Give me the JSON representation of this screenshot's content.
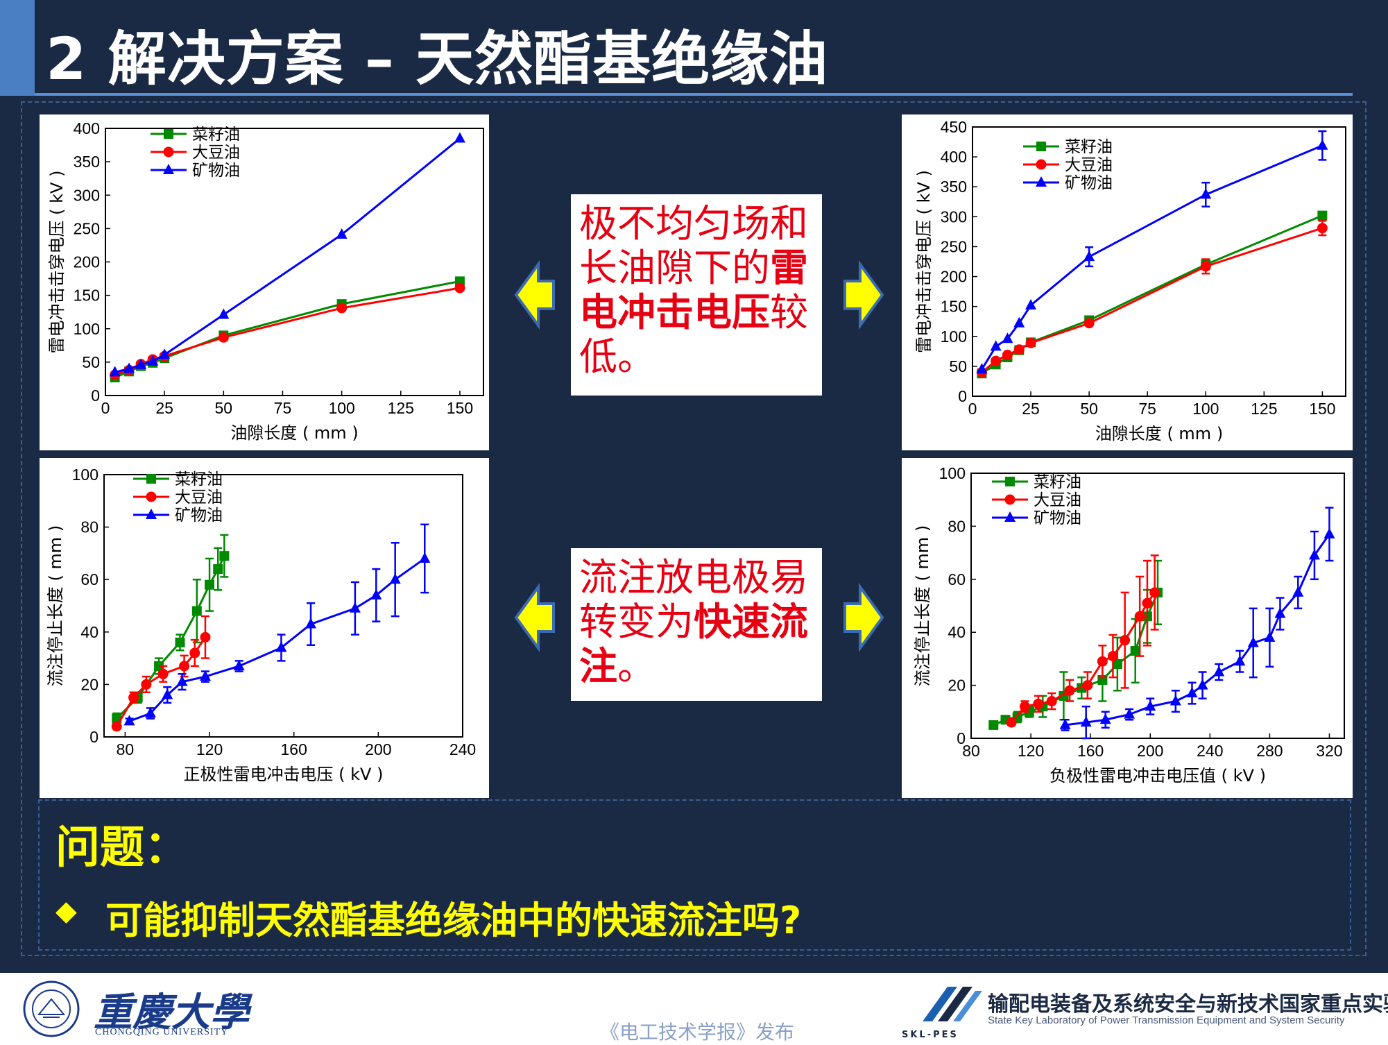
{
  "header": {
    "title": "2 解决方案 – 天然酯基绝缘油"
  },
  "callouts": {
    "top": {
      "normal1": "极不均匀场和长油隙下的",
      "bold": "雷电冲击电压",
      "normal2": "较低。"
    },
    "bottom": {
      "normal1": "流注放电极易转变为",
      "bold": "快速流注",
      "normal2": "。"
    }
  },
  "question": {
    "title": "问题：",
    "bullet": "◆",
    "text": "可能抑制天然酯基绝缘油中的快速流注吗?"
  },
  "footer": {
    "university_cn": "重慶大學",
    "university_en": "CHONGQING UNIVERSITY",
    "seal_text": "重庆大学 · CHONGQING UNIVERSITY · 1929",
    "publish": "《电工技术学报》发布",
    "lab_abbr": "SKL-PES",
    "lab_cn": "输配电装备及系统安全与新技术国家重点实验室",
    "lab_en": "State Key Laboratory of Power Transmission Equipment and System Security"
  },
  "colors": {
    "rapeseed": "#008a00",
    "soybean": "#ff0000",
    "mineral": "#0000ff",
    "callout_text": "#e60012",
    "question_text": "#ffff00",
    "background": "#1b2a44"
  },
  "chart_data": [
    {
      "type": "line",
      "xlabel": "油隙长度 ( mm )",
      "ylabel": "雷电冲击击穿电压 ( kV )",
      "xlim": [
        0,
        160
      ],
      "ylim": [
        0,
        400
      ],
      "xticks": [
        0,
        25,
        50,
        75,
        100,
        125,
        150
      ],
      "yticks": [
        0,
        50,
        100,
        150,
        200,
        250,
        300,
        350,
        400
      ],
      "legend": "top-left",
      "series": [
        {
          "name": "菜籽油",
          "color": "#008a00",
          "marker": "square",
          "x": [
            4,
            10,
            15,
            20,
            25,
            50,
            100,
            150
          ],
          "y": [
            27,
            36,
            44,
            49,
            56,
            90,
            137,
            171
          ]
        },
        {
          "name": "大豆油",
          "color": "#ff0000",
          "marker": "circle",
          "x": [
            4,
            10,
            15,
            20,
            25,
            50,
            100,
            150
          ],
          "y": [
            31,
            38,
            47,
            54,
            59,
            87,
            131,
            161
          ]
        },
        {
          "name": "矿物油",
          "color": "#0000ff",
          "marker": "triangle",
          "x": [
            4,
            10,
            15,
            20,
            25,
            50,
            100,
            150
          ],
          "y": [
            35,
            40,
            46,
            51,
            61,
            121,
            241,
            385
          ]
        }
      ]
    },
    {
      "type": "line",
      "xlabel": "油隙长度 ( mm )",
      "ylabel": "雷电冲击击穿电压 ( kV )",
      "xlim": [
        0,
        160
      ],
      "ylim": [
        0,
        450
      ],
      "xticks": [
        0,
        25,
        50,
        75,
        100,
        125,
        150
      ],
      "yticks": [
        0,
        50,
        100,
        150,
        200,
        250,
        300,
        350,
        400,
        450
      ],
      "legend": "top-left",
      "series": [
        {
          "name": "菜籽油",
          "color": "#008a00",
          "marker": "square",
          "x": [
            4,
            10,
            15,
            20,
            25,
            50,
            100,
            150
          ],
          "y": [
            38,
            53,
            65,
            77,
            90,
            127,
            220,
            302
          ],
          "err": [
            0,
            0,
            0,
            0,
            0,
            0,
            8,
            0
          ]
        },
        {
          "name": "大豆油",
          "color": "#ff0000",
          "marker": "circle",
          "x": [
            4,
            10,
            15,
            20,
            25,
            50,
            100,
            150
          ],
          "y": [
            40,
            59,
            69,
            78,
            89,
            122,
            217,
            281
          ],
          "err": [
            0,
            0,
            0,
            0,
            0,
            0,
            12,
            12
          ]
        },
        {
          "name": "矿物油",
          "color": "#0000ff",
          "marker": "triangle",
          "x": [
            4,
            10,
            15,
            20,
            25,
            50,
            100,
            150
          ],
          "y": [
            45,
            83,
            96,
            122,
            152,
            233,
            337,
            419
          ],
          "err": [
            0,
            0,
            0,
            0,
            0,
            16,
            20,
            24
          ]
        }
      ]
    },
    {
      "type": "line",
      "xlabel": "正极性雷电冲击电压 ( kV )",
      "ylabel": "流注停止长度 ( mm )",
      "xlim": [
        70,
        240
      ],
      "ylim": [
        0,
        100
      ],
      "xticks": [
        80,
        120,
        160,
        200,
        240
      ],
      "yticks": [
        0,
        20,
        40,
        60,
        80,
        100
      ],
      "legend": "top-left",
      "series": [
        {
          "name": "菜籽油",
          "color": "#008a00",
          "marker": "square",
          "x": [
            76,
            86,
            96,
            106,
            114,
            120,
            124,
            127
          ],
          "y": [
            7,
            15,
            27,
            36,
            48,
            58,
            64,
            69
          ],
          "err": [
            2,
            2,
            3,
            3,
            12,
            10,
            8,
            8
          ]
        },
        {
          "name": "大豆油",
          "color": "#ff0000",
          "marker": "circle",
          "x": [
            76,
            84,
            90,
            98,
            108,
            113,
            118
          ],
          "y": [
            4,
            15,
            20,
            24,
            27,
            32,
            38
          ],
          "err": [
            0,
            2,
            3,
            3,
            4,
            5,
            8
          ]
        },
        {
          "name": "矿物油",
          "color": "#0000ff",
          "marker": "triangle",
          "x": [
            82,
            92,
            100,
            107,
            118,
            134,
            154,
            168,
            189,
            199,
            208,
            222
          ],
          "y": [
            6,
            9,
            16,
            21,
            23,
            27,
            34,
            43,
            49,
            54,
            60,
            68
          ],
          "err": [
            1,
            2,
            3,
            3,
            2,
            2,
            5,
            8,
            10,
            10,
            14,
            13
          ]
        }
      ]
    },
    {
      "type": "line",
      "xlabel": "负极性雷电冲击电压值 ( kV )",
      "ylabel": "流注停止长度 ( mm )",
      "xlim": [
        80,
        330
      ],
      "ylim": [
        0,
        100
      ],
      "xticks": [
        80,
        120,
        160,
        200,
        240,
        280,
        320
      ],
      "yticks": [
        0,
        20,
        40,
        60,
        80,
        100
      ],
      "legend": "top-left",
      "series": [
        {
          "name": "菜籽油",
          "color": "#008a00",
          "marker": "square",
          "x": [
            95,
            103,
            111,
            119,
            128,
            142,
            154,
            168,
            178,
            190,
            198,
            205
          ],
          "y": [
            5,
            7,
            8,
            10,
            12,
            16,
            19,
            22,
            28,
            33,
            46,
            55
          ],
          "err": [
            1,
            1,
            2,
            2,
            4,
            9,
            4,
            8,
            10,
            12,
            10,
            12
          ]
        },
        {
          "name": "大豆油",
          "color": "#ff0000",
          "marker": "circle",
          "x": [
            107,
            116,
            125,
            134,
            146,
            158,
            168,
            175,
            183,
            193,
            198,
            203
          ],
          "y": [
            6,
            12,
            13,
            14,
            18,
            20,
            29,
            31,
            37,
            46,
            51,
            55
          ],
          "err": [
            1,
            2,
            3,
            3,
            4,
            5,
            6,
            8,
            18,
            15,
            16,
            14
          ]
        },
        {
          "name": "矿物油",
          "color": "#0000ff",
          "marker": "triangle",
          "x": [
            143,
            157,
            170,
            186,
            200,
            217,
            228,
            235,
            246,
            260,
            269,
            280,
            287,
            299,
            310,
            320
          ],
          "y": [
            5,
            6,
            7,
            9,
            12,
            14,
            17,
            20,
            25,
            29,
            36,
            38,
            47,
            55,
            69,
            77
          ],
          "err": [
            2,
            6,
            3,
            2,
            3,
            4,
            4,
            5,
            3,
            4,
            13,
            11,
            6,
            6,
            9,
            10
          ]
        }
      ]
    }
  ]
}
